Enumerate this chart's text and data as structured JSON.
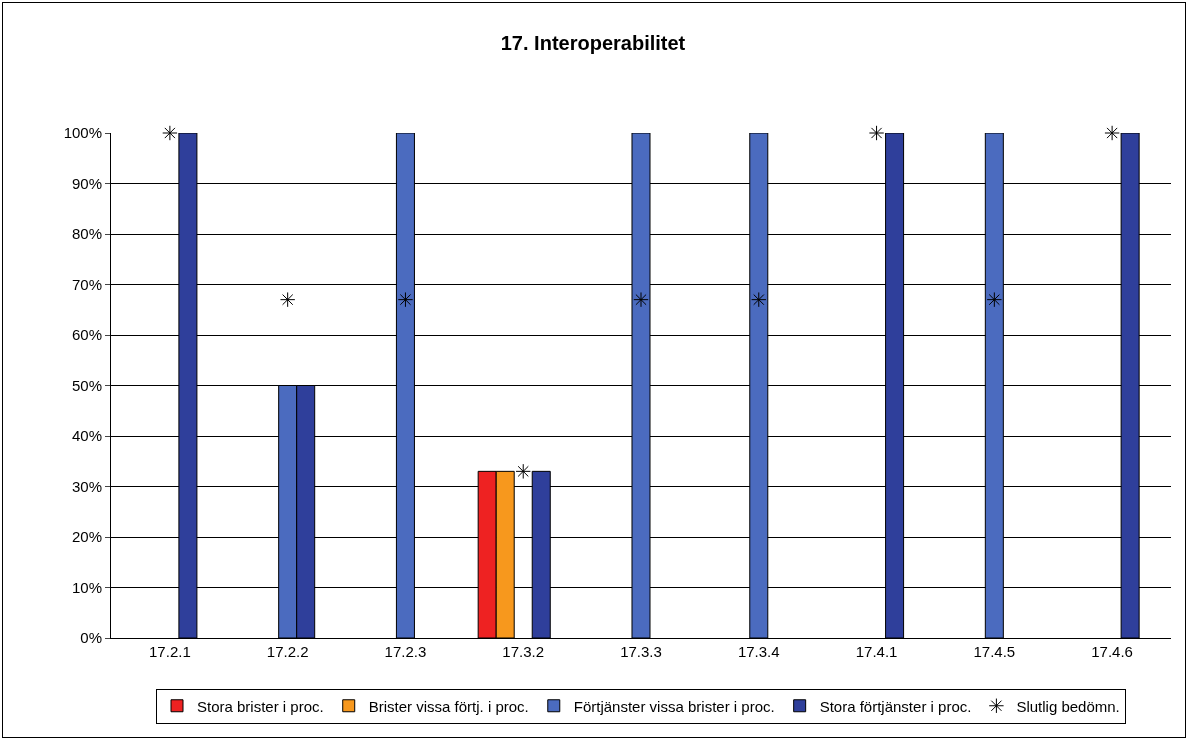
{
  "chart_data": {
    "type": "bar",
    "title": "17. Interoperabilitet",
    "categories": [
      "17.2.1",
      "17.2.2",
      "17.2.3",
      "17.3.2",
      "17.3.3",
      "17.3.4",
      "17.4.1",
      "17.4.5",
      "17.4.6"
    ],
    "series": [
      {
        "name": "Stora brister i proc.",
        "color": "#ee2222",
        "values": [
          null,
          null,
          null,
          33,
          null,
          null,
          null,
          null,
          null
        ]
      },
      {
        "name": "Brister vissa förtj. i proc.",
        "color": "#f7981d",
        "values": [
          null,
          null,
          null,
          33,
          null,
          null,
          null,
          null,
          null
        ]
      },
      {
        "name": "Förtjänster vissa brister i proc.",
        "color": "#4b6bbf",
        "values": [
          null,
          50,
          100,
          null,
          100,
          100,
          null,
          100,
          null
        ]
      },
      {
        "name": "Stora förtjänster i proc.",
        "color": "#2f3f9b",
        "values": [
          100,
          50,
          null,
          33,
          null,
          null,
          100,
          null,
          100
        ]
      },
      {
        "name": "Slutlig bedömn.",
        "color": "#000000",
        "type": "scatter",
        "marker": "cross",
        "values": [
          100,
          67,
          67,
          33,
          67,
          67,
          100,
          67,
          100
        ]
      }
    ],
    "ylim": [
      0,
      100
    ],
    "yticks": [
      {
        "value": 0,
        "label": "0%"
      },
      {
        "value": 10,
        "label": "10%"
      },
      {
        "value": 20,
        "label": "20%"
      },
      {
        "value": 30,
        "label": "30%"
      },
      {
        "value": 40,
        "label": "40%"
      },
      {
        "value": 50,
        "label": "50%"
      },
      {
        "value": 60,
        "label": "60%"
      },
      {
        "value": 70,
        "label": "70%"
      },
      {
        "value": 80,
        "label": "80%"
      },
      {
        "value": 90,
        "label": "90%"
      },
      {
        "value": 100,
        "label": "100%"
      }
    ],
    "grid": "y",
    "legend": "bottom"
  }
}
